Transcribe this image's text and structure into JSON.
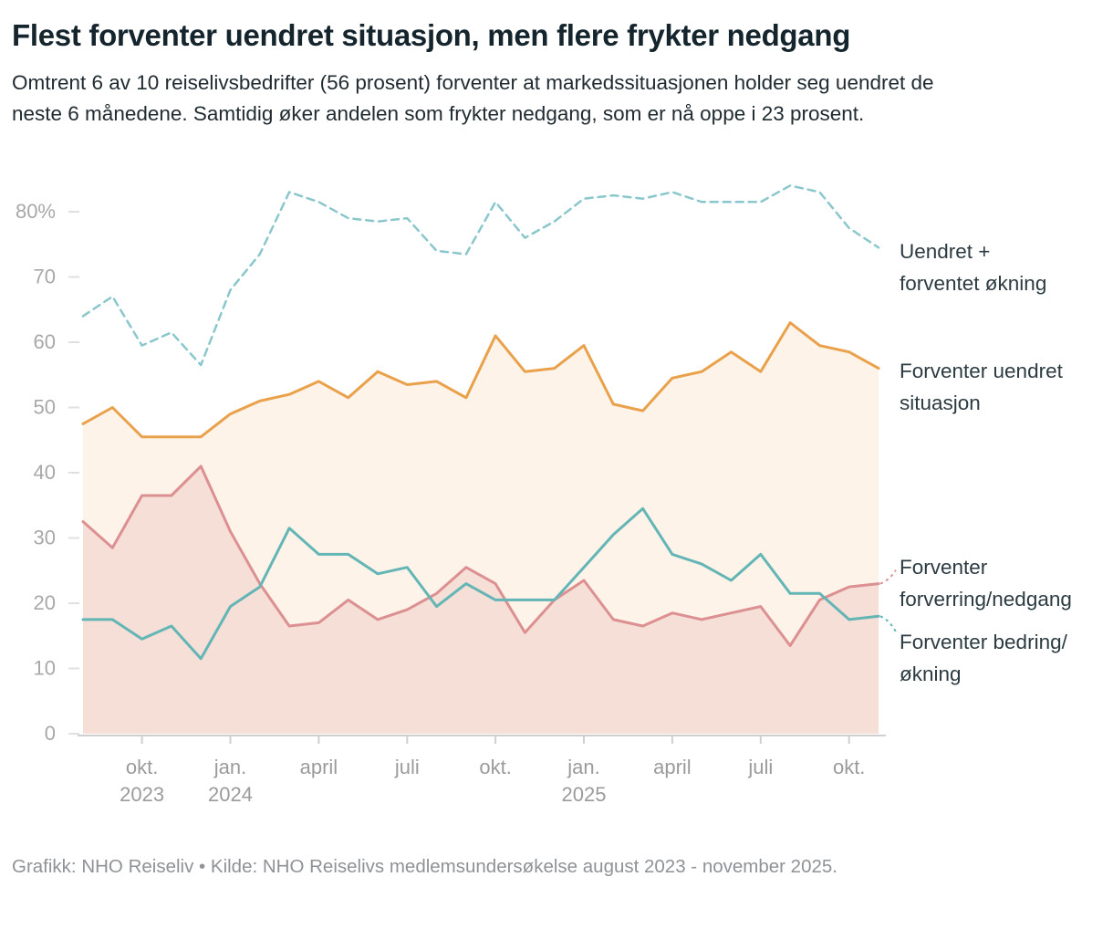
{
  "header": {
    "title": "Flest forventer uendret situasjon, men flere frykter nedgang",
    "subtitle": "Omtrent 6 av 10 reiselivsbedrifter (56 prosent) forventer at markedssituasjonen holder seg uendret de neste 6 månedene. Samtidig øker andelen som frykter nedgang, som er nå oppe i 23 prosent."
  },
  "footer": {
    "credit": "Grafikk: NHO Reiseliv • Kilde: NHO Reiselivs medlemsundersøkelse august 2023 - november 2025."
  },
  "chart_data": {
    "type": "line",
    "title": "Flest forventer uendret situasjon, men flere frykter nedgang",
    "x_unit": "month",
    "x_start": "aug. 2023",
    "x_end": "nov. 2025",
    "x_months": [
      "aug 23",
      "sep 23",
      "okt 23",
      "nov 23",
      "des 23",
      "jan 24",
      "feb 24",
      "mar 24",
      "apr 24",
      "mai 24",
      "jun 24",
      "jul 24",
      "aug 24",
      "sep 24",
      "okt 24",
      "nov 24",
      "des 24",
      "jan 25",
      "feb 25",
      "mar 25",
      "apr 25",
      "mai 25",
      "jun 25",
      "jul 25",
      "aug 25",
      "sep 25",
      "okt 25",
      "nov 25"
    ],
    "x_ticks": [
      {
        "index": 2,
        "label": "okt.",
        "sublabel": "2023"
      },
      {
        "index": 5,
        "label": "jan.",
        "sublabel": "2024"
      },
      {
        "index": 8,
        "label": "april"
      },
      {
        "index": 11,
        "label": "juli"
      },
      {
        "index": 14,
        "label": "okt."
      },
      {
        "index": 17,
        "label": "jan.",
        "sublabel": "2025"
      },
      {
        "index": 20,
        "label": "april"
      },
      {
        "index": 23,
        "label": "juli"
      },
      {
        "index": 26,
        "label": "okt."
      }
    ],
    "y_ticks": [
      0,
      10,
      20,
      30,
      40,
      50,
      60,
      70,
      80
    ],
    "y_top_label": "80%",
    "ylim": [
      0,
      88
    ],
    "grid": false,
    "legend_position": "right-of-lines",
    "series": [
      {
        "id": "uendret-pluss-okning",
        "name": "Uendret + forventet økning",
        "label_lines": [
          "Uendret +",
          "forventet økning"
        ],
        "color": "#8ac7cc",
        "style": "dashed",
        "dash": "8 6",
        "width": 2.5,
        "fill": null,
        "values": [
          64,
          67,
          59.5,
          61.5,
          56.5,
          68,
          73.5,
          83,
          81.5,
          79,
          78.5,
          79,
          74,
          73.5,
          81.5,
          76,
          78.5,
          82,
          82.5,
          82,
          83,
          81.5,
          81.5,
          81.5,
          84,
          83,
          77.5,
          74.5
        ]
      },
      {
        "id": "forventer-uendret",
        "name": "Forventer uendret situasjon",
        "label_lines": [
          "Forventer uendret",
          "situasjon"
        ],
        "color": "#eaa14b",
        "style": "solid",
        "dash": null,
        "width": 3,
        "fill": "rgba(236,166,80,0.13)",
        "values": [
          47.5,
          50,
          45.5,
          45.5,
          45.5,
          49,
          51,
          52,
          54,
          51.5,
          55.5,
          53.5,
          54,
          51.5,
          61,
          55.5,
          56,
          59.5,
          50.5,
          49.5,
          54.5,
          55.5,
          58.5,
          55.5,
          63,
          59.5,
          58.5,
          56
        ]
      },
      {
        "id": "forventer-nedgang",
        "name": "Forventer forverring/nedgang",
        "label_lines": [
          "Forventer",
          "forverring/nedgang"
        ],
        "color": "#dc9091",
        "style": "solid",
        "dash": null,
        "width": 3,
        "fill": "rgba(220,144,145,0.20)",
        "values": [
          32.5,
          28.5,
          36.5,
          36.5,
          41,
          31,
          23,
          16.5,
          17,
          20.5,
          17.5,
          19,
          21.5,
          25.5,
          23,
          15.5,
          20.5,
          23.5,
          17.5,
          16.5,
          18.5,
          17.5,
          18.5,
          19.5,
          13.5,
          20.5,
          22.5,
          23
        ]
      },
      {
        "id": "forventer-bedring",
        "name": "Forventer bedring/økning",
        "label_lines": [
          "Forventer bedring/",
          "økning"
        ],
        "color": "#63b5b6",
        "style": "solid",
        "dash": null,
        "width": 3,
        "fill": null,
        "values": [
          17.5,
          17.5,
          14.5,
          16.5,
          11.5,
          19.5,
          22.5,
          31.5,
          27.5,
          27.5,
          24.5,
          25.5,
          19.5,
          23,
          20.5,
          20.5,
          20.5,
          25.5,
          30.5,
          34.5,
          27.5,
          26,
          23.5,
          27.5,
          21.5,
          21.5,
          17.5,
          18
        ]
      }
    ],
    "connectors": [
      {
        "series_index": 2,
        "dy": -15
      },
      {
        "series_index": 3,
        "dy": 17
      }
    ]
  }
}
